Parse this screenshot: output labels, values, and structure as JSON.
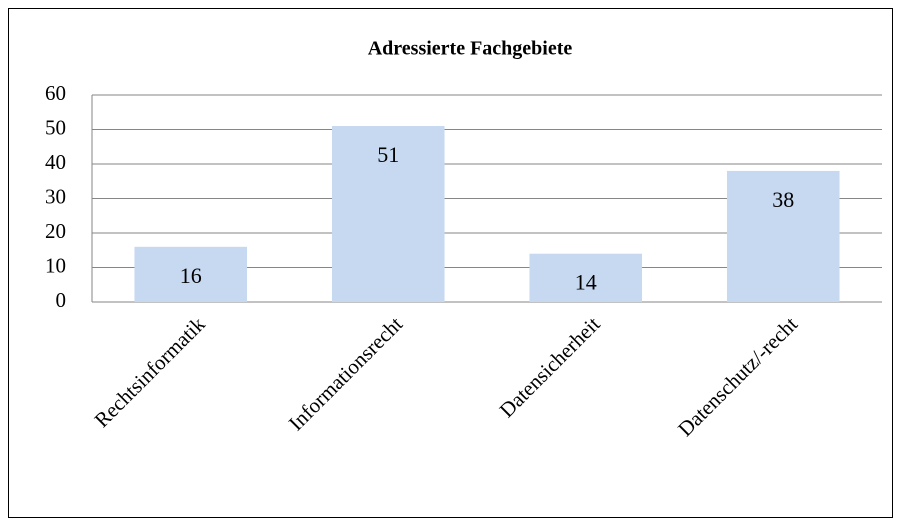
{
  "chart_data": {
    "type": "bar",
    "title": "Adressierte Fachgebiete",
    "categories": [
      "Rechtsinformatik",
      "Informationsrecht",
      "Datensicherheit",
      "Datenschutz/-recht"
    ],
    "values": [
      16,
      51,
      14,
      38
    ],
    "color": "#c6d9f1",
    "ylim": [
      0,
      60
    ],
    "yticks": [
      0,
      10,
      20,
      30,
      40,
      50,
      60
    ],
    "grid": true
  }
}
